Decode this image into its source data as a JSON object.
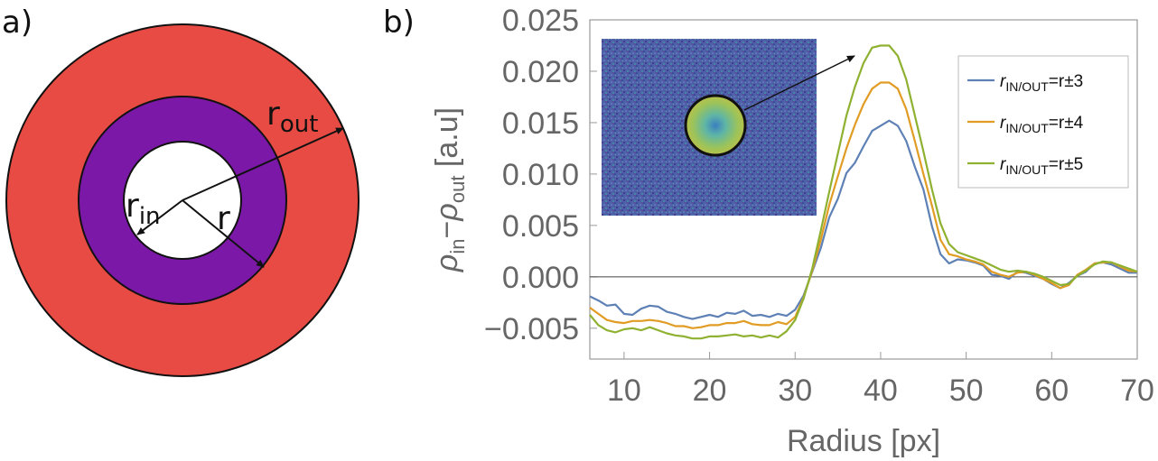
{
  "panels": {
    "a": "a)",
    "b": "b)"
  },
  "diagram": {
    "outer_color": "#E84B43",
    "middle_color": "#7B18A8",
    "inner_color": "#FFFFFF",
    "labels": {
      "r_out": "r",
      "r_out_sub": "out",
      "r_in": "r",
      "r_in_sub": "in",
      "r": "r"
    }
  },
  "chart_data": {
    "type": "line",
    "xlabel": "Radius [px]",
    "ylabel_parts": {
      "rho1": "ρ",
      "sub1": "in",
      "minus": "−",
      "rho2": "ρ",
      "sub2": "out",
      "unit": " [a.u]"
    },
    "xlim": [
      6,
      70
    ],
    "ylim": [
      -0.008,
      0.025
    ],
    "x_ticks": [
      "10",
      "20",
      "30",
      "40",
      "50",
      "60",
      "70"
    ],
    "x_tick_values": [
      10,
      20,
      30,
      40,
      50,
      60,
      70
    ],
    "y_ticks": [
      "−0.005",
      "0.000",
      "0.005",
      "0.010",
      "0.015",
      "0.020",
      "0.025"
    ],
    "y_tick_values": [
      -0.005,
      0,
      0.005,
      0.01,
      0.015,
      0.02,
      0.025
    ],
    "reference_line": 0,
    "legend_position": "top-right",
    "series": [
      {
        "name": "r",
        "name_sub": "IN/OUT",
        "name_tail": "=r±3",
        "color": "#5E81B5",
        "points": [
          [
            6,
            -0.0019
          ],
          [
            7,
            -0.0023
          ],
          [
            8,
            -0.0028
          ],
          [
            9,
            -0.0027
          ],
          [
            10,
            -0.0036
          ],
          [
            11,
            -0.0037
          ],
          [
            12,
            -0.0031
          ],
          [
            13,
            -0.0028
          ],
          [
            14,
            -0.0029
          ],
          [
            15,
            -0.0034
          ],
          [
            16,
            -0.0036
          ],
          [
            17,
            -0.0039
          ],
          [
            18,
            -0.0041
          ],
          [
            19,
            -0.0039
          ],
          [
            20,
            -0.0037
          ],
          [
            21,
            -0.0039
          ],
          [
            22,
            -0.0035
          ],
          [
            23,
            -0.0036
          ],
          [
            24,
            -0.0033
          ],
          [
            25,
            -0.0038
          ],
          [
            26,
            -0.0037
          ],
          [
            27,
            -0.0039
          ],
          [
            28,
            -0.0036
          ],
          [
            29,
            -0.0038
          ],
          [
            30,
            -0.0032
          ],
          [
            31,
            -0.0018
          ],
          [
            32,
            0.0005
          ],
          [
            33,
            0.0028
          ],
          [
            34,
            0.0058
          ],
          [
            35,
            0.0076
          ],
          [
            36,
            0.0101
          ],
          [
            37,
            0.0111
          ],
          [
            38,
            0.0127
          ],
          [
            39,
            0.0142
          ],
          [
            40,
            0.0147
          ],
          [
            41,
            0.0152
          ],
          [
            42,
            0.0147
          ],
          [
            43,
            0.0132
          ],
          [
            44,
            0.0107
          ],
          [
            45,
            0.0085
          ],
          [
            46,
            0.0049
          ],
          [
            47,
            0.0022
          ],
          [
            48,
            0.0013
          ],
          [
            49,
            0.0017
          ],
          [
            50,
            0.0016
          ],
          [
            51,
            0.0014
          ],
          [
            52,
            0.0011
          ],
          [
            53,
            0.0002
          ],
          [
            54,
            0.0001
          ],
          [
            55,
            -0.0002
          ],
          [
            56,
            0.0005
          ],
          [
            57,
            0.0004
          ],
          [
            58,
            0.0001
          ],
          [
            59,
            -0.0002
          ],
          [
            60,
            -0.0007
          ],
          [
            61,
            -0.0011
          ],
          [
            62,
            -0.0006
          ],
          [
            63,
            0.0001
          ],
          [
            64,
            0.0005
          ],
          [
            65,
            0.0013
          ],
          [
            66,
            0.0014
          ],
          [
            67,
            0.0012
          ],
          [
            68,
            0.0008
          ],
          [
            69,
            0.0004
          ],
          [
            70,
            0.0004
          ]
        ]
      },
      {
        "name": "r",
        "name_sub": "IN/OUT",
        "name_tail": "=r±4",
        "color": "#E19C24",
        "points": [
          [
            6,
            -0.003
          ],
          [
            7,
            -0.0036
          ],
          [
            8,
            -0.0042
          ],
          [
            9,
            -0.0044
          ],
          [
            10,
            -0.0045
          ],
          [
            11,
            -0.0043
          ],
          [
            12,
            -0.0043
          ],
          [
            13,
            -0.0042
          ],
          [
            14,
            -0.0043
          ],
          [
            15,
            -0.0045
          ],
          [
            16,
            -0.0048
          ],
          [
            17,
            -0.0048
          ],
          [
            18,
            -0.005
          ],
          [
            19,
            -0.0049
          ],
          [
            20,
            -0.0047
          ],
          [
            21,
            -0.0047
          ],
          [
            22,
            -0.0045
          ],
          [
            23,
            -0.0045
          ],
          [
            24,
            -0.0043
          ],
          [
            25,
            -0.0046
          ],
          [
            26,
            -0.0047
          ],
          [
            27,
            -0.0047
          ],
          [
            28,
            -0.0044
          ],
          [
            29,
            -0.0046
          ],
          [
            30,
            -0.0039
          ],
          [
            31,
            -0.002
          ],
          [
            32,
            0.0006
          ],
          [
            33,
            0.0036
          ],
          [
            34,
            0.007
          ],
          [
            35,
            0.0098
          ],
          [
            36,
            0.0125
          ],
          [
            37,
            0.0148
          ],
          [
            38,
            0.0168
          ],
          [
            39,
            0.0183
          ],
          [
            40,
            0.0189
          ],
          [
            41,
            0.0189
          ],
          [
            42,
            0.0183
          ],
          [
            43,
            0.0163
          ],
          [
            44,
            0.0132
          ],
          [
            45,
            0.01
          ],
          [
            46,
            0.0069
          ],
          [
            47,
            0.0036
          ],
          [
            48,
            0.0022
          ],
          [
            49,
            0.002
          ],
          [
            50,
            0.0017
          ],
          [
            51,
            0.0015
          ],
          [
            52,
            0.0012
          ],
          [
            53,
            0.0005
          ],
          [
            54,
            0.0002
          ],
          [
            55,
            0.0
          ],
          [
            56,
            0.0004
          ],
          [
            57,
            0.0005
          ],
          [
            58,
            0.0002
          ],
          [
            59,
            -0.0002
          ],
          [
            60,
            -0.0006
          ],
          [
            61,
            -0.0011
          ],
          [
            62,
            -0.0008
          ],
          [
            63,
            0.0002
          ],
          [
            64,
            0.0007
          ],
          [
            65,
            0.0013
          ],
          [
            66,
            0.0014
          ],
          [
            67,
            0.0014
          ],
          [
            68,
            0.001
          ],
          [
            69,
            0.0006
          ],
          [
            70,
            0.0005
          ]
        ]
      },
      {
        "name": "r",
        "name_sub": "IN/OUT",
        "name_tail": "=r±5",
        "color": "#8FB131",
        "points": [
          [
            6,
            -0.0037
          ],
          [
            7,
            -0.0047
          ],
          [
            8,
            -0.0052
          ],
          [
            9,
            -0.0054
          ],
          [
            10,
            -0.0051
          ],
          [
            11,
            -0.005
          ],
          [
            12,
            -0.0052
          ],
          [
            13,
            -0.0049
          ],
          [
            14,
            -0.0052
          ],
          [
            15,
            -0.0055
          ],
          [
            16,
            -0.0057
          ],
          [
            17,
            -0.0058
          ],
          [
            18,
            -0.006
          ],
          [
            19,
            -0.006
          ],
          [
            20,
            -0.0058
          ],
          [
            21,
            -0.0058
          ],
          [
            22,
            -0.0057
          ],
          [
            23,
            -0.0056
          ],
          [
            24,
            -0.0058
          ],
          [
            25,
            -0.0057
          ],
          [
            26,
            -0.0059
          ],
          [
            27,
            -0.0057
          ],
          [
            28,
            -0.0059
          ],
          [
            29,
            -0.0053
          ],
          [
            30,
            -0.0042
          ],
          [
            31,
            -0.0021
          ],
          [
            32,
            0.0008
          ],
          [
            33,
            0.0045
          ],
          [
            34,
            0.0083
          ],
          [
            35,
            0.012
          ],
          [
            36,
            0.0157
          ],
          [
            37,
            0.0185
          ],
          [
            38,
            0.0208
          ],
          [
            39,
            0.0223
          ],
          [
            40,
            0.0225
          ],
          [
            41,
            0.0225
          ],
          [
            42,
            0.0215
          ],
          [
            43,
            0.0192
          ],
          [
            44,
            0.0157
          ],
          [
            45,
            0.0122
          ],
          [
            46,
            0.0085
          ],
          [
            47,
            0.0052
          ],
          [
            48,
            0.0032
          ],
          [
            49,
            0.0024
          ],
          [
            50,
            0.0021
          ],
          [
            51,
            0.0018
          ],
          [
            52,
            0.0015
          ],
          [
            53,
            0.0011
          ],
          [
            54,
            0.0007
          ],
          [
            55,
            0.0005
          ],
          [
            56,
            0.0006
          ],
          [
            57,
            0.0005
          ],
          [
            58,
            0.0003
          ],
          [
            59,
            0.0
          ],
          [
            60,
            -0.0004
          ],
          [
            61,
            -0.0008
          ],
          [
            62,
            -0.0007
          ],
          [
            63,
            0.0001
          ],
          [
            64,
            0.0006
          ],
          [
            65,
            0.0012
          ],
          [
            66,
            0.0015
          ],
          [
            67,
            0.0014
          ],
          [
            68,
            0.0011
          ],
          [
            69,
            0.0008
          ],
          [
            70,
            0.0005
          ]
        ]
      }
    ]
  }
}
